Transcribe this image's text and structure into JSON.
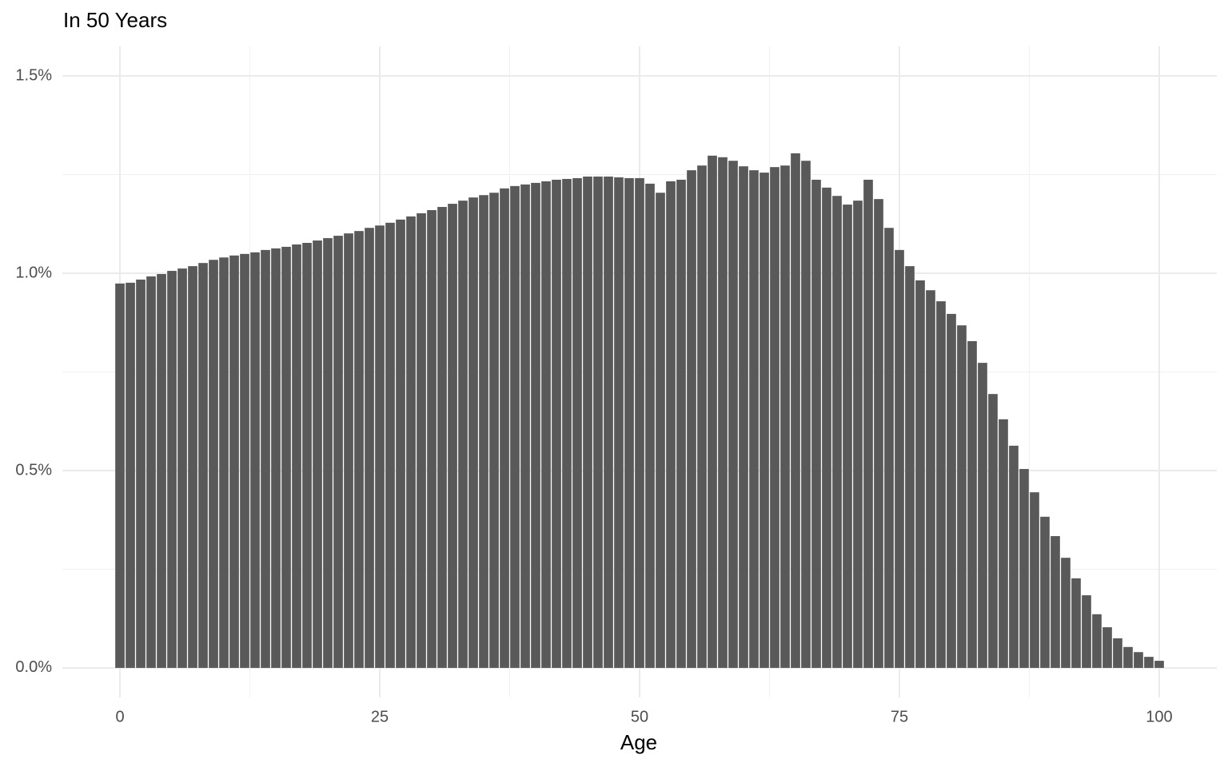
{
  "chart_data": {
    "type": "bar",
    "title": "In 50 Years",
    "xlabel": "Age",
    "x": [
      0,
      1,
      2,
      3,
      4,
      5,
      6,
      7,
      8,
      9,
      10,
      11,
      12,
      13,
      14,
      15,
      16,
      17,
      18,
      19,
      20,
      21,
      22,
      23,
      24,
      25,
      26,
      27,
      28,
      29,
      30,
      31,
      32,
      33,
      34,
      35,
      36,
      37,
      38,
      39,
      40,
      41,
      42,
      43,
      44,
      45,
      46,
      47,
      48,
      49,
      50,
      51,
      52,
      53,
      54,
      55,
      56,
      57,
      58,
      59,
      60,
      61,
      62,
      63,
      64,
      65,
      66,
      67,
      68,
      69,
      70,
      71,
      72,
      73,
      74,
      75,
      76,
      77,
      78,
      79,
      80,
      81,
      82,
      83,
      84,
      85,
      86,
      87,
      88,
      89,
      90,
      91,
      92,
      93,
      94,
      95,
      96,
      97,
      98,
      99,
      100
    ],
    "values": [
      0.974,
      0.976,
      0.984,
      0.992,
      0.998,
      1.006,
      1.012,
      1.018,
      1.026,
      1.034,
      1.04,
      1.045,
      1.049,
      1.053,
      1.059,
      1.063,
      1.067,
      1.073,
      1.077,
      1.083,
      1.089,
      1.095,
      1.101,
      1.107,
      1.115,
      1.121,
      1.128,
      1.136,
      1.144,
      1.152,
      1.16,
      1.168,
      1.176,
      1.184,
      1.192,
      1.198,
      1.204,
      1.215,
      1.221,
      1.225,
      1.229,
      1.233,
      1.237,
      1.239,
      1.241,
      1.245,
      1.245,
      1.245,
      1.243,
      1.241,
      1.241,
      1.227,
      1.204,
      1.233,
      1.237,
      1.261,
      1.273,
      1.298,
      1.294,
      1.285,
      1.271,
      1.261,
      1.255,
      1.269,
      1.273,
      1.304,
      1.285,
      1.237,
      1.217,
      1.196,
      1.174,
      1.184,
      1.237,
      1.188,
      1.115,
      1.059,
      1.018,
      0.982,
      0.957,
      0.929,
      0.897,
      0.868,
      0.828,
      0.773,
      0.694,
      0.63,
      0.563,
      0.504,
      0.445,
      0.383,
      0.334,
      0.279,
      0.227,
      0.184,
      0.136,
      0.103,
      0.075,
      0.053,
      0.04,
      0.028,
      0.018
    ],
    "color": "#595959",
    "xlim": [
      -5.54,
      105.54
    ],
    "xticks": [
      0,
      25,
      50,
      75,
      100
    ],
    "xminor": [
      12.5,
      37.5,
      62.5,
      87.5
    ],
    "ylim": [
      -0.075,
      1.575
    ],
    "yticks": [
      {
        "value": 0,
        "label": "0.0%"
      },
      {
        "value": 0.5,
        "label": "0.5%"
      },
      {
        "value": 1,
        "label": "1.0%"
      },
      {
        "value": 1.5,
        "label": "1.5%"
      }
    ],
    "yminor": [
      0.25,
      0.75,
      1.25
    ],
    "grid": true
  }
}
